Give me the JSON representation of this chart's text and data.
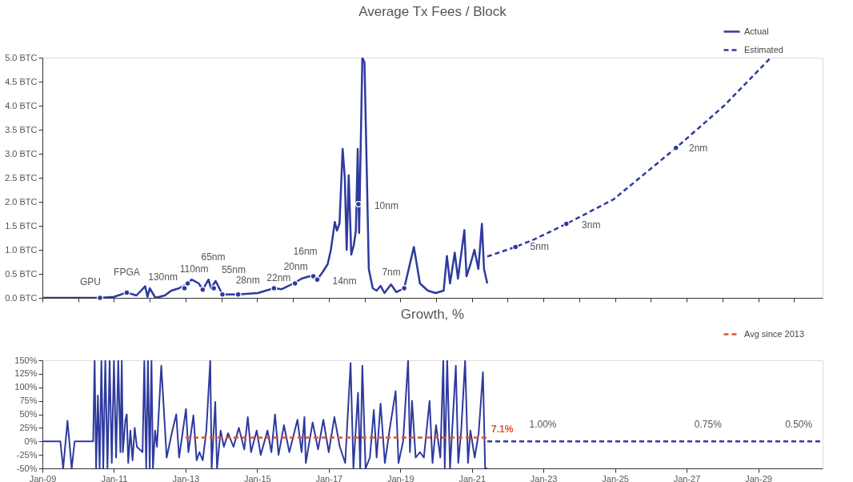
{
  "chart_data": [
    {
      "type": "line",
      "title": "Average Tx Fees / Block",
      "xlim": [
        "2009-01-01",
        "2030-10-20"
      ],
      "xticks": [
        {
          "value": "2009-01-01",
          "label": null
        },
        {
          "value": "2010-01-01",
          "label": null
        },
        {
          "value": "2011-01-01",
          "label": null
        },
        {
          "value": "2012-01-01",
          "label": null
        },
        {
          "value": "2013-01-01",
          "label": null
        },
        {
          "value": "2014-01-01",
          "label": null
        },
        {
          "value": "2015-01-01",
          "label": null
        },
        {
          "value": "2016-01-01",
          "label": null
        },
        {
          "value": "2017-01-01",
          "label": null
        },
        {
          "value": "2018-01-01",
          "label": null
        },
        {
          "value": "2019-01-01",
          "label": null
        },
        {
          "value": "2020-01-01",
          "label": null
        },
        {
          "value": "2021-01-01",
          "label": null
        },
        {
          "value": "2022-01-01",
          "label": null
        },
        {
          "value": "2023-01-01",
          "label": null
        },
        {
          "value": "2024-01-01",
          "label": null
        },
        {
          "value": "2025-01-01",
          "label": null
        },
        {
          "value": "2026-01-01",
          "label": null
        },
        {
          "value": "2027-01-01",
          "label": null
        },
        {
          "value": "2028-01-01",
          "label": null
        },
        {
          "value": "2029-01-01",
          "label": null
        },
        {
          "value": "2030-01-01",
          "label": null
        }
      ],
      "ylim": [
        0,
        5
      ],
      "yticks": [
        {
          "value": 0,
          "label": "0.0 BTC"
        },
        {
          "value": 0.5,
          "label": "0.5 BTC"
        },
        {
          "value": 1,
          "label": "1.0 BTC"
        },
        {
          "value": 1.5,
          "label": "1.5 BTC"
        },
        {
          "value": 2,
          "label": "2.0 BTC"
        },
        {
          "value": 2.5,
          "label": "2.5 BTC"
        },
        {
          "value": 3,
          "label": "3.0 BTC"
        },
        {
          "value": 3.5,
          "label": "3.5 BTC"
        },
        {
          "value": 4,
          "label": "4.0 BTC"
        },
        {
          "value": 4.5,
          "label": "4.5 BTC"
        },
        {
          "value": 5,
          "label": "5.0 BTC"
        }
      ],
      "tick_labels": "y",
      "legend": "top right",
      "series": [
        {
          "name": "Actual",
          "color": "#2e3a9e",
          "line_style": "solid",
          "x": [
            "2009-01-01",
            "2010-08-12",
            "2011-01-01",
            "2011-05-12",
            "2011-08-19",
            "2011-11-15",
            "2011-12-10",
            "2012-01-01",
            "2012-02-28",
            "2012-06-03",
            "2012-08-08",
            "2012-10-27",
            "2013-01-23",
            "2013-03-04",
            "2013-05-16",
            "2013-06-25",
            "2013-08-23",
            "2013-09-17",
            "2013-11-04",
            "2014-01-12",
            "2014-06-22",
            "2015-01-08",
            "2015-06-22",
            "2015-09-10",
            "2016-01-08",
            "2016-03-30",
            "2016-06-18",
            "2016-09-06",
            "2016-11-04",
            "2016-12-21",
            "2017-01-23",
            "2017-03-04",
            "2017-03-26",
            "2017-04-21",
            "2017-05-23",
            "2017-06-14",
            "2017-07-03",
            "2017-07-24",
            "2017-08-19",
            "2017-09-14",
            "2017-10-05",
            "2017-10-24",
            "2017-11-07",
            "2017-12-10",
            "2018-01-01",
            "2018-02-14",
            "2018-03-26",
            "2018-05-05",
            "2018-06-14",
            "2018-07-24",
            "2018-09-28",
            "2018-11-22",
            "2019-02-10",
            "2019-05-20",
            "2019-07-21",
            "2019-10-09",
            "2019-12-28",
            "2020-03-19",
            "2020-04-21",
            "2020-05-23",
            "2020-07-10",
            "2020-08-12",
            "2020-10-16",
            "2020-11-07",
            "2020-12-17",
            "2021-01-27",
            "2021-03-08",
            "2021-04-13",
            "2021-05-05",
            "2021-06-07"
          ],
          "values": [
            0,
            0,
            0.02,
            0.11,
            0.05,
            0.24,
            0.02,
            0.2,
            0.0,
            0.05,
            0.15,
            0.2,
            0.3,
            0.38,
            0.3,
            0.17,
            0.38,
            0.2,
            0.35,
            0.07,
            0.07,
            0.1,
            0.2,
            0.18,
            0.3,
            0.4,
            0.45,
            0.38,
            0.55,
            0.7,
            1.0,
            1.58,
            1.4,
            1.55,
            3.1,
            2.5,
            1.0,
            2.55,
            0.9,
            1.1,
            1.4,
            3.1,
            1.35,
            5.0,
            4.9,
            0.6,
            0.2,
            0.15,
            0.25,
            0.1,
            0.28,
            0.12,
            0.2,
            1.06,
            0.3,
            0.15,
            0.1,
            0.15,
            0.87,
            0.3,
            0.94,
            0.4,
            1.41,
            0.45,
            0.7,
            1.0,
            0.6,
            1.54,
            0.6,
            0.3
          ]
        },
        {
          "name": "Estimated",
          "color": "#2e3a9e",
          "line_style": "dashed",
          "x": [
            "2021-06-07",
            "2022-03-22",
            "2022-10-02",
            "2023-08-23",
            "2024-12-17",
            "2026-09-14",
            "2028-01-19",
            "2029-05-09"
          ],
          "values": [
            0.86,
            1.06,
            1.22,
            1.54,
            2.05,
            3.12,
            4.0,
            5.0
          ]
        },
        {
          "type": "scatter",
          "color": "#2e3a9e",
          "x": [
            "2010-08-12",
            "2011-05-12",
            "2012-12-21",
            "2013-01-23",
            "2013-06-25",
            "2013-10-16",
            "2014-01-12",
            "2014-06-22",
            "2015-06-22",
            "2016-01-23",
            "2016-07-28",
            "2016-09-06",
            "2017-10-31",
            "2019-02-10",
            "2022-03-22",
            "2023-08-23",
            "2026-09-14"
          ],
          "values": [
            0,
            0.11,
            0.2,
            0.3,
            0.17,
            0.2,
            0.07,
            0.07,
            0.2,
            0.3,
            0.45,
            0.38,
            1.95,
            0.2,
            1.06,
            1.54,
            3.12
          ]
        }
      ],
      "annotations": [
        {
          "text": "GPU",
          "x": "2010-08-12",
          "y": 0
        },
        {
          "text": "FPGA",
          "x": "2011-05-12",
          "y": 0.11
        },
        {
          "text": "130nm",
          "x": "2012-12-21",
          "y": 0.2
        },
        {
          "text": "110nm",
          "x": "2013-01-23",
          "y": 0.3
        },
        {
          "text": "65nm",
          "x": "2013-11-04",
          "y": 0.35
        },
        {
          "text": "55nm",
          "x": "2014-01-12",
          "y": 0.07
        },
        {
          "text": "28nm",
          "x": "2014-06-22",
          "y": 0.07
        },
        {
          "text": "22nm",
          "x": "2015-06-22",
          "y": 0.2
        },
        {
          "text": "20nm",
          "x": "2016-01-23",
          "y": 0.3
        },
        {
          "text": "16nm",
          "x": "2016-07-28",
          "y": 0.45
        },
        {
          "text": "14nm",
          "x": "2016-09-06",
          "y": 0.38
        },
        {
          "text": "10nm",
          "x": "2017-10-31",
          "y": 1.95
        },
        {
          "text": "7nm",
          "x": "2019-02-10",
          "y": 0.2
        },
        {
          "text": "5nm",
          "x": "2022-03-22",
          "y": 1.06
        },
        {
          "text": "3nm",
          "x": "2023-08-23",
          "y": 1.54
        },
        {
          "text": "2nm",
          "x": "2026-09-14",
          "y": 3.12
        }
      ]
    },
    {
      "type": "line",
      "title": "Growth, %",
      "xlim": [
        "2009-01-01",
        "2030-10-20"
      ],
      "xticks": [
        {
          "value": "2009-01-01",
          "label": "Jan-09"
        },
        {
          "value": "2011-01-01",
          "label": "Jan-11"
        },
        {
          "value": "2013-01-01",
          "label": "Jan-13"
        },
        {
          "value": "2015-01-01",
          "label": "Jan-15"
        },
        {
          "value": "2017-01-01",
          "label": "Jan-17"
        },
        {
          "value": "2019-01-01",
          "label": "Jan-19"
        },
        {
          "value": "2021-01-01",
          "label": "Jan-21"
        },
        {
          "value": "2023-01-01",
          "label": "Jan-23"
        },
        {
          "value": "2025-01-01",
          "label": "Jan-25"
        },
        {
          "value": "2027-01-01",
          "label": "Jan-27"
        },
        {
          "value": "2029-01-01",
          "label": "Jan-29"
        }
      ],
      "ylim": [
        -50,
        150
      ],
      "yticks": [
        {
          "value": -50,
          "label": "-50%"
        },
        {
          "value": -25,
          "label": "-25%"
        },
        {
          "value": 0,
          "label": "0%"
        },
        {
          "value": 25,
          "label": "25%"
        },
        {
          "value": 50,
          "label": "50%"
        },
        {
          "value": 75,
          "label": "75%"
        },
        {
          "value": 100,
          "label": "100%"
        },
        {
          "value": 125,
          "label": "125%"
        },
        {
          "value": 150,
          "label": "150%"
        }
      ],
      "legend": "top right",
      "series": [
        {
          "color": "#2e3a9e",
          "line_style": "solid",
          "x": [
            "2009-01-01",
            "2009-07-03",
            "2009-08-01",
            "2009-09-14",
            "2009-10-27",
            "2009-11-26",
            "2010-06-03",
            "2010-06-18",
            "2010-07-03",
            "2010-07-21",
            "2010-08-08",
            "2010-08-26",
            "2010-09-14",
            "2010-10-05",
            "2010-10-27",
            "2010-11-18",
            "2010-12-10",
            "2011-01-01",
            "2011-01-23",
            "2011-02-14",
            "2011-03-08",
            "2011-03-22",
            "2011-04-02",
            "2011-04-28",
            "2011-05-12",
            "2011-05-27",
            "2011-06-18",
            "2011-07-10",
            "2011-08-01",
            "2011-08-23",
            "2011-09-21",
            "2011-10-20",
            "2011-11-07",
            "2011-11-26",
            "2011-12-14",
            "2012-01-01",
            "2012-01-19",
            "2012-02-03",
            "2012-02-25",
            "2012-03-15",
            "2012-04-28",
            "2012-06-22",
            "2012-08-19",
            "2012-09-28",
            "2012-10-27",
            "2013-01-05",
            "2013-01-30",
            "2013-03-22",
            "2013-04-24",
            "2013-05-23",
            "2013-06-25",
            "2013-08-01",
            "2013-09-10",
            "2013-09-24",
            "2013-10-31",
            "2013-11-18",
            "2013-12-25",
            "2014-01-27",
            "2014-03-11",
            "2014-05-05",
            "2014-06-29",
            "2014-08-23",
            "2014-09-28",
            "2014-10-31",
            "2014-12-28",
            "2015-02-07",
            "2015-04-17",
            "2015-05-27",
            "2015-07-03",
            "2015-08-08",
            "2015-10-02",
            "2015-11-26",
            "2016-02-17",
            "2016-03-30",
            "2016-04-28",
            "2016-05-12",
            "2016-07-21",
            "2016-09-14",
            "2016-11-07",
            "2017-01-01",
            "2017-02-28",
            "2017-04-24",
            "2017-06-18",
            "2017-08-12",
            "2017-09-10",
            "2017-10-27",
            "2017-11-18",
            "2017-12-10",
            "2018-01-12",
            "2018-02-25",
            "2018-04-06",
            "2018-05-05",
            "2018-06-14",
            "2018-07-28",
            "2018-09-21",
            "2018-11-15",
            "2018-12-14",
            "2019-01-30",
            "2019-03-22",
            "2019-04-10",
            "2019-05-01",
            "2019-06-07",
            "2019-07-21",
            "2019-08-30",
            "2019-10-27",
            "2019-11-26",
            "2020-01-01",
            "2020-02-14",
            "2020-03-15",
            "2020-03-30",
            "2020-04-24",
            "2020-05-23",
            "2020-07-21",
            "2020-08-15",
            "2020-09-14",
            "2020-10-24",
            "2020-11-22",
            "2020-12-17",
            "2021-01-30",
            "2021-03-11",
            "2021-04-24",
            "2021-05-16",
            "2021-06-07"
          ],
          "values": [
            0,
            0,
            -50,
            38,
            -50,
            0,
            0,
            150,
            -50,
            85,
            -50,
            150,
            -50,
            150,
            -50,
            150,
            -40,
            150,
            -30,
            150,
            -20,
            150,
            -20,
            40,
            50,
            -40,
            20,
            -35,
            25,
            -10,
            -15,
            -20,
            150,
            -50,
            150,
            -50,
            150,
            -50,
            20,
            -10,
            140,
            -30,
            20,
            50,
            -30,
            60,
            -20,
            48,
            -35,
            -20,
            -35,
            20,
            150,
            -50,
            73,
            -50,
            20,
            -10,
            15,
            -10,
            25,
            -15,
            45,
            -20,
            20,
            -25,
            20,
            -20,
            50,
            -25,
            30,
            -20,
            40,
            -20,
            45,
            -40,
            35,
            -15,
            40,
            -20,
            45,
            -10,
            -40,
            145,
            -50,
            90,
            -50,
            140,
            -50,
            -30,
            58,
            -30,
            70,
            -40,
            30,
            93,
            -40,
            0,
            150,
            -20,
            75,
            -30,
            -20,
            -30,
            75,
            -40,
            30,
            -30,
            150,
            -50,
            150,
            -50,
            140,
            -40,
            20,
            150,
            -40,
            20,
            -30,
            15,
            128,
            -50,
            -50
          ]
        },
        {
          "color": "#2e3a9e",
          "line_style": "dashed",
          "x": [
            "2021-06-07",
            "2022-03-08",
            "2023-08-04",
            "2026-07-28",
            "2029-07-21",
            "2030-10-20"
          ],
          "values": [
            0,
            0,
            0,
            0,
            0,
            0
          ]
        },
        {
          "name": "Avg since 2013",
          "color": "#e8502a",
          "line_style": "dashed",
          "x": [
            "2013-01-01",
            "2021-06-07"
          ],
          "values": [
            7.1,
            7.1
          ],
          "value_labels": [
            null,
            "7.1%"
          ]
        }
      ],
      "annotations": [
        {
          "text": "1.00%",
          "x": "2022-03-08",
          "y": 0
        },
        {
          "text": "0.75%",
          "x": "2026-07-28",
          "y": 0
        },
        {
          "text": "0.50%",
          "x": "2029-07-21",
          "y": 0
        }
      ]
    }
  ]
}
